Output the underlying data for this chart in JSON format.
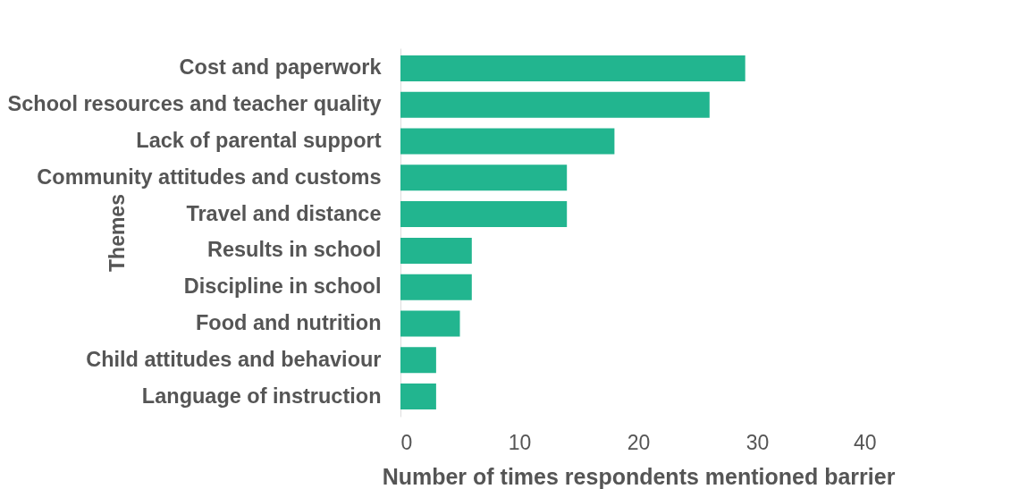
{
  "chart_data": {
    "type": "bar",
    "orientation": "horizontal",
    "categories": [
      "Cost and paperwork",
      "School resources and teacher quality",
      "Lack of parental support",
      "Community attitudes and customs",
      "Travel and distance",
      "Results in school",
      "Discipline in school",
      "Food and nutrition",
      "Child attitudes and behaviour",
      "Language of instruction"
    ],
    "values": [
      29,
      26,
      18,
      14,
      14,
      6,
      6,
      5,
      3,
      3
    ],
    "color": "#22b58f",
    "xlim": [
      0,
      40
    ],
    "xticks": [
      0,
      10,
      20,
      30,
      40
    ],
    "xlabel": "Number of times respondents mentioned barrier",
    "ylabel": "Themes",
    "grid": false
  }
}
